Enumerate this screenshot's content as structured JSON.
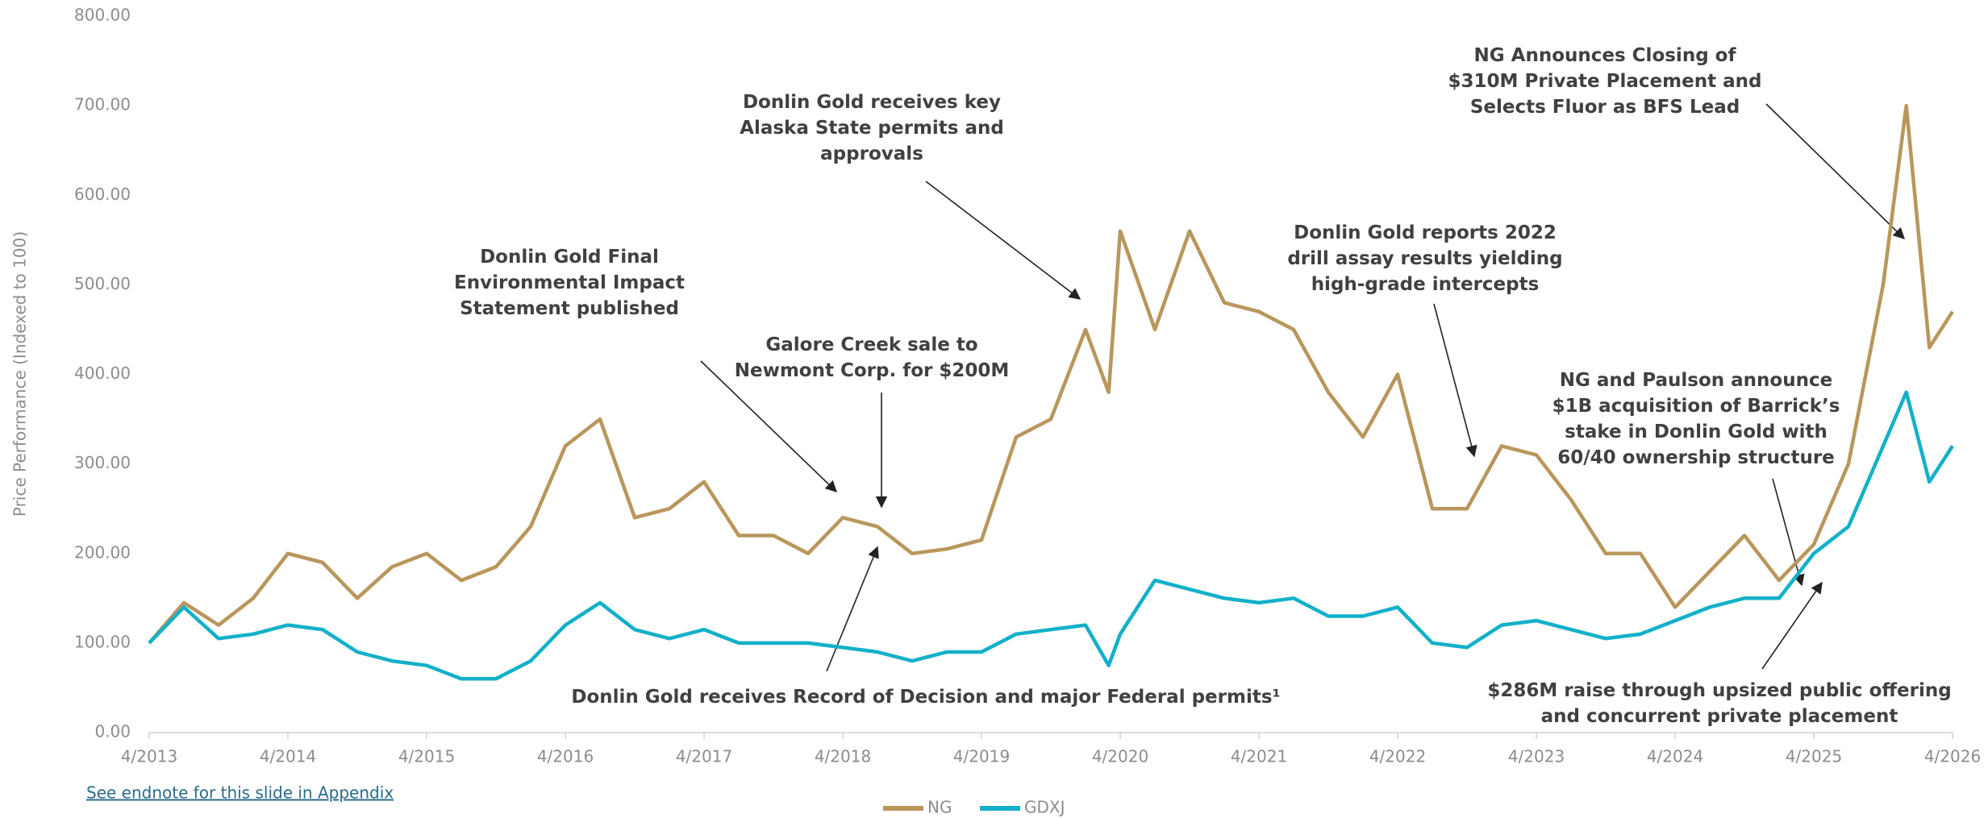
{
  "chart_data": {
    "type": "line",
    "y_label": "Price Performance (Indexed to 100)",
    "footnote": "See endnote for this slide in Appendix",
    "x": [
      "4/2013",
      "7/2013",
      "10/2013",
      "1/2014",
      "4/2014",
      "7/2014",
      "10/2014",
      "1/2015",
      "4/2015",
      "7/2015",
      "10/2015",
      "1/2016",
      "4/2016",
      "7/2016",
      "10/2016",
      "1/2017",
      "4/2017",
      "7/2017",
      "10/2017",
      "1/2018",
      "4/2018",
      "7/2018",
      "10/2018",
      "1/2019",
      "4/2019",
      "7/2019",
      "10/2019",
      "1/2020",
      "3/2020",
      "4/2020",
      "7/2020",
      "10/2020",
      "1/2021",
      "4/2021",
      "7/2021",
      "10/2021",
      "1/2022",
      "4/2022",
      "7/2022",
      "10/2022",
      "1/2023",
      "4/2023",
      "7/2023",
      "10/2023",
      "1/2024",
      "4/2024",
      "7/2024",
      "10/2024",
      "1/2025",
      "4/2025",
      "7/2025",
      "10/2025",
      "12/2025",
      "2/2026",
      "4/2026"
    ],
    "series": [
      {
        "name": "NG",
        "color": "#b9965b",
        "values": [
          100,
          145,
          120,
          150,
          200,
          190,
          150,
          185,
          200,
          170,
          185,
          230,
          320,
          350,
          240,
          250,
          280,
          220,
          220,
          200,
          240,
          230,
          200,
          205,
          215,
          330,
          350,
          450,
          380,
          560,
          450,
          560,
          480,
          470,
          450,
          380,
          330,
          400,
          250,
          250,
          320,
          310,
          260,
          200,
          200,
          140,
          180,
          220,
          170,
          210,
          300,
          500,
          700,
          430,
          470
        ]
      },
      {
        "name": "GDXJ",
        "color": "#12b0c9",
        "values": [
          100,
          140,
          105,
          110,
          120,
          115,
          90,
          80,
          75,
          60,
          60,
          80,
          120,
          145,
          115,
          105,
          115,
          100,
          100,
          100,
          95,
          90,
          80,
          90,
          90,
          110,
          115,
          120,
          75,
          110,
          170,
          160,
          150,
          145,
          150,
          130,
          130,
          140,
          100,
          95,
          120,
          125,
          115,
          105,
          110,
          125,
          140,
          150,
          150,
          200,
          230,
          320,
          380,
          280,
          320
        ]
      }
    ],
    "xlim": [
      "4/2013",
      "4/2026"
    ],
    "xticks": [
      "4/2013",
      "4/2014",
      "4/2015",
      "4/2016",
      "4/2017",
      "4/2018",
      "4/2019",
      "4/2020",
      "4/2021",
      "4/2022",
      "4/2023",
      "4/2024",
      "4/2025",
      "4/2026"
    ],
    "ylim": [
      0,
      800
    ],
    "yticks": [
      {
        "value": 0,
        "label": "0.00"
      },
      {
        "value": 100,
        "label": "100.00"
      },
      {
        "value": 200,
        "label": "200.00"
      },
      {
        "value": 300,
        "label": "300.00"
      },
      {
        "value": 400,
        "label": "400.00"
      },
      {
        "value": 500,
        "label": "500.00"
      },
      {
        "value": 600,
        "label": "600.00"
      },
      {
        "value": 700,
        "label": "700.00"
      },
      {
        "value": 800,
        "label": "800.00"
      }
    ],
    "grid": false,
    "legend": "bottom",
    "annotations": [
      {
        "lines": [
          "Donlin Gold Final",
          "Environmental Impact",
          "Statement published"
        ]
      },
      {
        "lines": [
          "Galore Creek sale to",
          "Newmont Corp. for $200M"
        ]
      },
      {
        "lines": [
          "Donlin Gold receives key",
          "Alaska State permits and",
          "approvals"
        ]
      },
      {
        "lines": [
          "Donlin Gold reports 2022",
          "drill assay results yielding",
          "high-grade intercepts"
        ]
      },
      {
        "lines": [
          "NG Announces Closing of",
          "$310M Private Placement and",
          "Selects Fluor as BFS Lead"
        ]
      },
      {
        "lines": [
          "NG and Paulson announce",
          "$1B acquisition of Barrick’s",
          "stake in Donlin Gold with",
          "60/40 ownership structure"
        ]
      },
      {
        "lines": [
          "Donlin Gold receives Record of Decision and major Federal permits¹"
        ]
      },
      {
        "lines": [
          "$286M raise through upsized public offering",
          "and concurrent private placement"
        ]
      }
    ]
  }
}
